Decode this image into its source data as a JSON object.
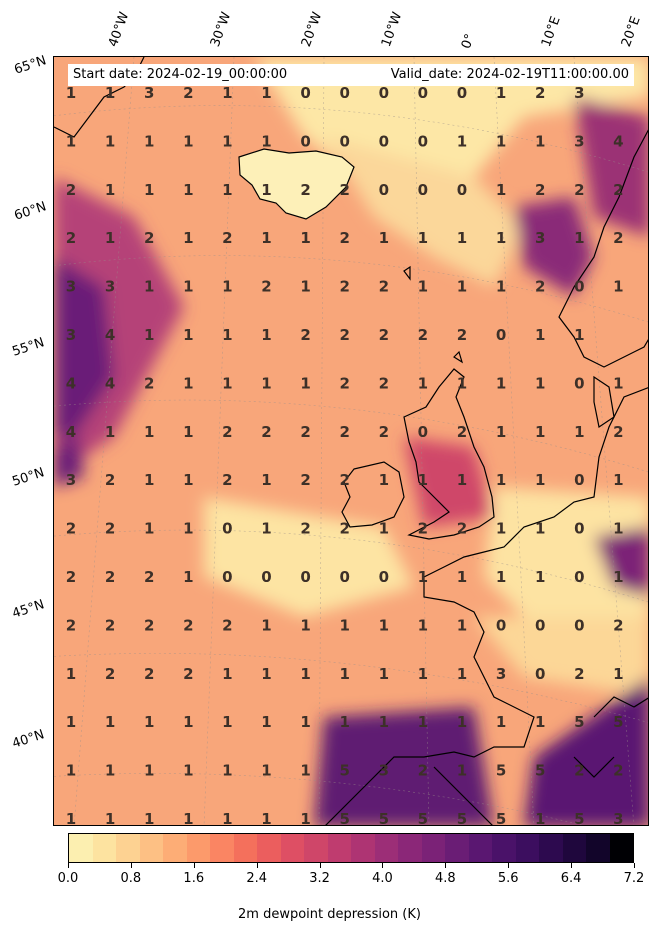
{
  "header": {
    "start_date": "Start date: 2024-02-19_00:00:00",
    "valid_date": "Valid_date: 2024-02-19T11:00:00.00"
  },
  "longitude_labels": [
    "40°W",
    "30°W",
    "20°W",
    "10°W",
    "0°",
    "10°E",
    "20°E"
  ],
  "latitude_labels": [
    "65°N",
    "60°N",
    "55°N",
    "50°N",
    "45°N",
    "40°N"
  ],
  "colorbar": {
    "label": "2m dewpoint depression (K)",
    "ticks": [
      "0.0",
      "0.8",
      "1.6",
      "2.4",
      "3.2",
      "4.0",
      "4.8",
      "5.6",
      "6.4",
      "7.2"
    ],
    "min": 0.0,
    "max": 7.2,
    "colors": [
      "#fcefb0",
      "#fde3a0",
      "#fdd292",
      "#fdc084",
      "#fdad76",
      "#fc9a6b",
      "#fa8563",
      "#f4705c",
      "#eb5e5e",
      "#de4f64",
      "#cf4669",
      "#bf3c6f",
      "#ae3473",
      "#9c2e77",
      "#8b2778",
      "#7b2277",
      "#6a1d75",
      "#5a1771",
      "#4a1269",
      "#3c0e5f",
      "#2d0a4f",
      "#1f073d",
      "#12052a",
      "#000004"
    ]
  },
  "grid_values": [
    [
      1,
      1,
      3,
      2,
      1,
      1,
      0,
      0,
      0,
      0,
      0,
      1,
      2,
      3,
      null
    ],
    [
      1,
      1,
      1,
      1,
      1,
      1,
      0,
      0,
      0,
      0,
      1,
      1,
      1,
      3,
      4
    ],
    [
      2,
      1,
      1,
      1,
      1,
      1,
      2,
      2,
      0,
      0,
      0,
      1,
      2,
      2,
      2
    ],
    [
      2,
      1,
      2,
      1,
      2,
      1,
      1,
      2,
      1,
      1,
      1,
      1,
      3,
      1,
      2
    ],
    [
      3,
      3,
      1,
      1,
      1,
      2,
      1,
      2,
      2,
      1,
      1,
      1,
      2,
      0,
      1
    ],
    [
      3,
      4,
      1,
      1,
      1,
      1,
      2,
      2,
      2,
      2,
      2,
      0,
      1,
      1,
      null
    ],
    [
      4,
      4,
      2,
      1,
      1,
      1,
      1,
      2,
      2,
      1,
      1,
      1,
      1,
      0,
      1
    ],
    [
      4,
      1,
      1,
      1,
      2,
      2,
      2,
      2,
      2,
      0,
      2,
      1,
      1,
      1,
      2
    ],
    [
      3,
      2,
      1,
      1,
      2,
      1,
      2,
      2,
      1,
      1,
      1,
      1,
      1,
      0,
      1
    ],
    [
      2,
      2,
      1,
      1,
      0,
      1,
      2,
      2,
      1,
      2,
      2,
      1,
      1,
      0,
      1
    ],
    [
      2,
      2,
      2,
      1,
      0,
      0,
      0,
      0,
      0,
      1,
      1,
      1,
      1,
      0,
      1
    ],
    [
      2,
      2,
      2,
      2,
      2,
      1,
      1,
      1,
      1,
      1,
      1,
      0,
      0,
      0,
      2
    ],
    [
      1,
      2,
      2,
      2,
      1,
      1,
      1,
      1,
      1,
      1,
      1,
      3,
      0,
      2,
      1
    ],
    [
      1,
      1,
      1,
      1,
      1,
      1,
      1,
      1,
      1,
      1,
      1,
      1,
      1,
      5,
      5
    ],
    [
      1,
      1,
      1,
      1,
      1,
      1,
      1,
      5,
      3,
      2,
      1,
      5,
      5,
      2,
      2
    ],
    [
      1,
      1,
      1,
      1,
      1,
      1,
      1,
      5,
      5,
      5,
      5,
      5,
      1,
      5,
      3
    ]
  ]
}
